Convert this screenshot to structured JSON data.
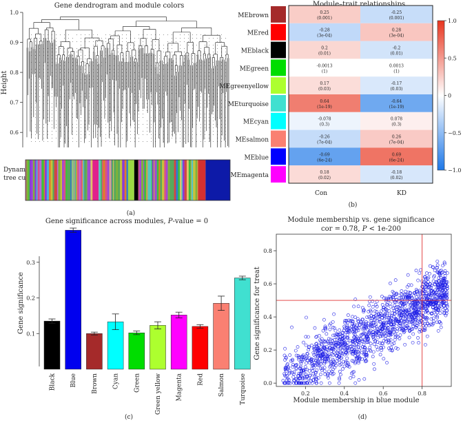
{
  "panel_labels": {
    "a": "(a)",
    "b": "(b)",
    "c": "(c)",
    "d": "(d)"
  },
  "chart_data": [
    {
      "id": "a",
      "type": "dendrogram",
      "title": "Gene dendrogram and module colors",
      "ylabel": "Height",
      "ylim": [
        0.55,
        1.0
      ],
      "yticks": [
        0.6,
        0.7,
        0.8,
        0.9,
        1.0
      ],
      "colorbar_label": [
        "Dynamic",
        "tree cut"
      ],
      "module_blocks": [
        {
          "color": "#e0208c",
          "share": 0.03
        },
        {
          "color": "#9bd843",
          "share": 0.03
        },
        {
          "color": "#000000",
          "share": 0.02
        },
        {
          "color": "#d43030",
          "share": 0.03
        },
        {
          "color": "#0d1aa8",
          "share": 0.12
        }
      ]
    },
    {
      "id": "b",
      "type": "heatmap",
      "title": "Module–trait relationships",
      "columns": [
        "Con",
        "KD"
      ],
      "rows": [
        {
          "name": "MEbrown",
          "color": "#a52a2a",
          "values": [
            0.25,
            -0.25
          ],
          "labels": [
            "0.25",
            "-0.25"
          ],
          "p": [
            "(0.001)",
            "(0.001)"
          ]
        },
        {
          "name": "MEred",
          "color": "#ff0000",
          "values": [
            -0.28,
            0.28
          ],
          "labels": [
            "-0.28",
            "0.28"
          ],
          "p": [
            "(3e-04)",
            "(3e-04)"
          ]
        },
        {
          "name": "MEblack",
          "color": "#000000",
          "values": [
            0.2,
            -0.2
          ],
          "labels": [
            "0.2",
            "-0.2"
          ],
          "p": [
            "(0.01)",
            "(0.01)"
          ]
        },
        {
          "name": "MEgreen",
          "color": "#00dd00",
          "values": [
            -0.0013,
            0.0013
          ],
          "labels": [
            "-0.0013",
            "0.0013"
          ],
          "p": [
            "(1)",
            "(1)"
          ]
        },
        {
          "name": "MEgreenyellow",
          "color": "#adff2f",
          "values": [
            0.17,
            -0.17
          ],
          "labels": [
            "0.17",
            "-0.17"
          ],
          "p": [
            "(0.03)",
            "(0.03)"
          ]
        },
        {
          "name": "MEturquoise",
          "color": "#40e0d0",
          "values": [
            0.64,
            -0.64
          ],
          "labels": [
            "0.64",
            "-0.64"
          ],
          "p": [
            "(1e-19)",
            "(1e-19)"
          ]
        },
        {
          "name": "MEcyan",
          "color": "#00ffff",
          "values": [
            -0.078,
            0.078
          ],
          "labels": [
            "-0.078",
            "0.078"
          ],
          "p": [
            "(0.3)",
            "(0.3)"
          ]
        },
        {
          "name": "MEsalmon",
          "color": "#fa8072",
          "values": [
            -0.26,
            0.26
          ],
          "labels": [
            "-0.26",
            "0.26"
          ],
          "p": [
            "(7e-04)",
            "(7e-04)"
          ]
        },
        {
          "name": "MEblue",
          "color": "#0000ff",
          "values": [
            -0.69,
            0.69
          ],
          "labels": [
            "-0.69",
            "0.69"
          ],
          "p": [
            "(6e-24)",
            "(6e-24)"
          ]
        },
        {
          "name": "MEmagenta",
          "color": "#ff00ff",
          "values": [
            0.18,
            -0.18
          ],
          "labels": [
            "0.18",
            "-0.18"
          ],
          "p": [
            "(0.02)",
            "(0.02)"
          ]
        }
      ],
      "colorbar_ticks": [
        "1.0",
        "0.5",
        "0",
        "−0.5",
        "−1.0"
      ],
      "colorbar_values": [
        1.0,
        0.5,
        0,
        -0.5,
        -1.0
      ],
      "range": [
        -1,
        1
      ]
    },
    {
      "id": "c",
      "type": "bar",
      "title": "Gene significance across modules, P-value = 0",
      "title_main": "Gene significance across modules, ",
      "title_p": "P",
      "title_rest": "-value = 0",
      "ylabel": "Gene significance",
      "ylim": [
        0,
        0.4
      ],
      "yticks": [
        "0.1",
        "0.2",
        "0.3"
      ],
      "ytick_values": [
        0.1,
        0.2,
        0.3
      ],
      "categories": [
        "Black",
        "Blue",
        "Brown",
        "Cyan",
        "Green",
        "Green yellow",
        "Magenta",
        "Red",
        "Salmon",
        "Turquoise"
      ],
      "values": [
        0.135,
        0.39,
        0.1,
        0.133,
        0.102,
        0.123,
        0.152,
        0.12,
        0.185,
        0.256
      ],
      "errors": [
        0.006,
        0.006,
        0.004,
        0.022,
        0.005,
        0.01,
        0.008,
        0.005,
        0.02,
        0.005
      ],
      "colors": [
        "#000000",
        "#0000ee",
        "#a52a2a",
        "#00ffff",
        "#00dd00",
        "#adff2f",
        "#ff00ff",
        "#ff0000",
        "#fa8072",
        "#40e0d0"
      ]
    },
    {
      "id": "d",
      "type": "scatter",
      "title": "Module membership vs. gene significance",
      "subtitle": "cor = 0.78, P < 1e-200",
      "subtitle_main": "cor = 0.78, ",
      "subtitle_p": "P",
      "subtitle_rest": " < 1e-200",
      "xlabel": "Module membership in blue module",
      "ylabel": "Gene significance for treat",
      "xlim": [
        0.05,
        0.95
      ],
      "ylim": [
        -0.02,
        0.9
      ],
      "xticks": [
        "0.2",
        "0.4",
        "0.6",
        "0.8"
      ],
      "xtick_values": [
        0.2,
        0.4,
        0.6,
        0.8
      ],
      "yticks": [
        "0.0",
        "0.2",
        "0.4",
        "0.6",
        "0.8"
      ],
      "ytick_values": [
        0.0,
        0.2,
        0.4,
        0.6,
        0.8
      ],
      "ref_x": 0.8,
      "ref_y": 0.5,
      "n_points": 1500,
      "correlation": 0.78,
      "point_color": "#1f1fe6",
      "ref_color": "#e03030"
    }
  ]
}
